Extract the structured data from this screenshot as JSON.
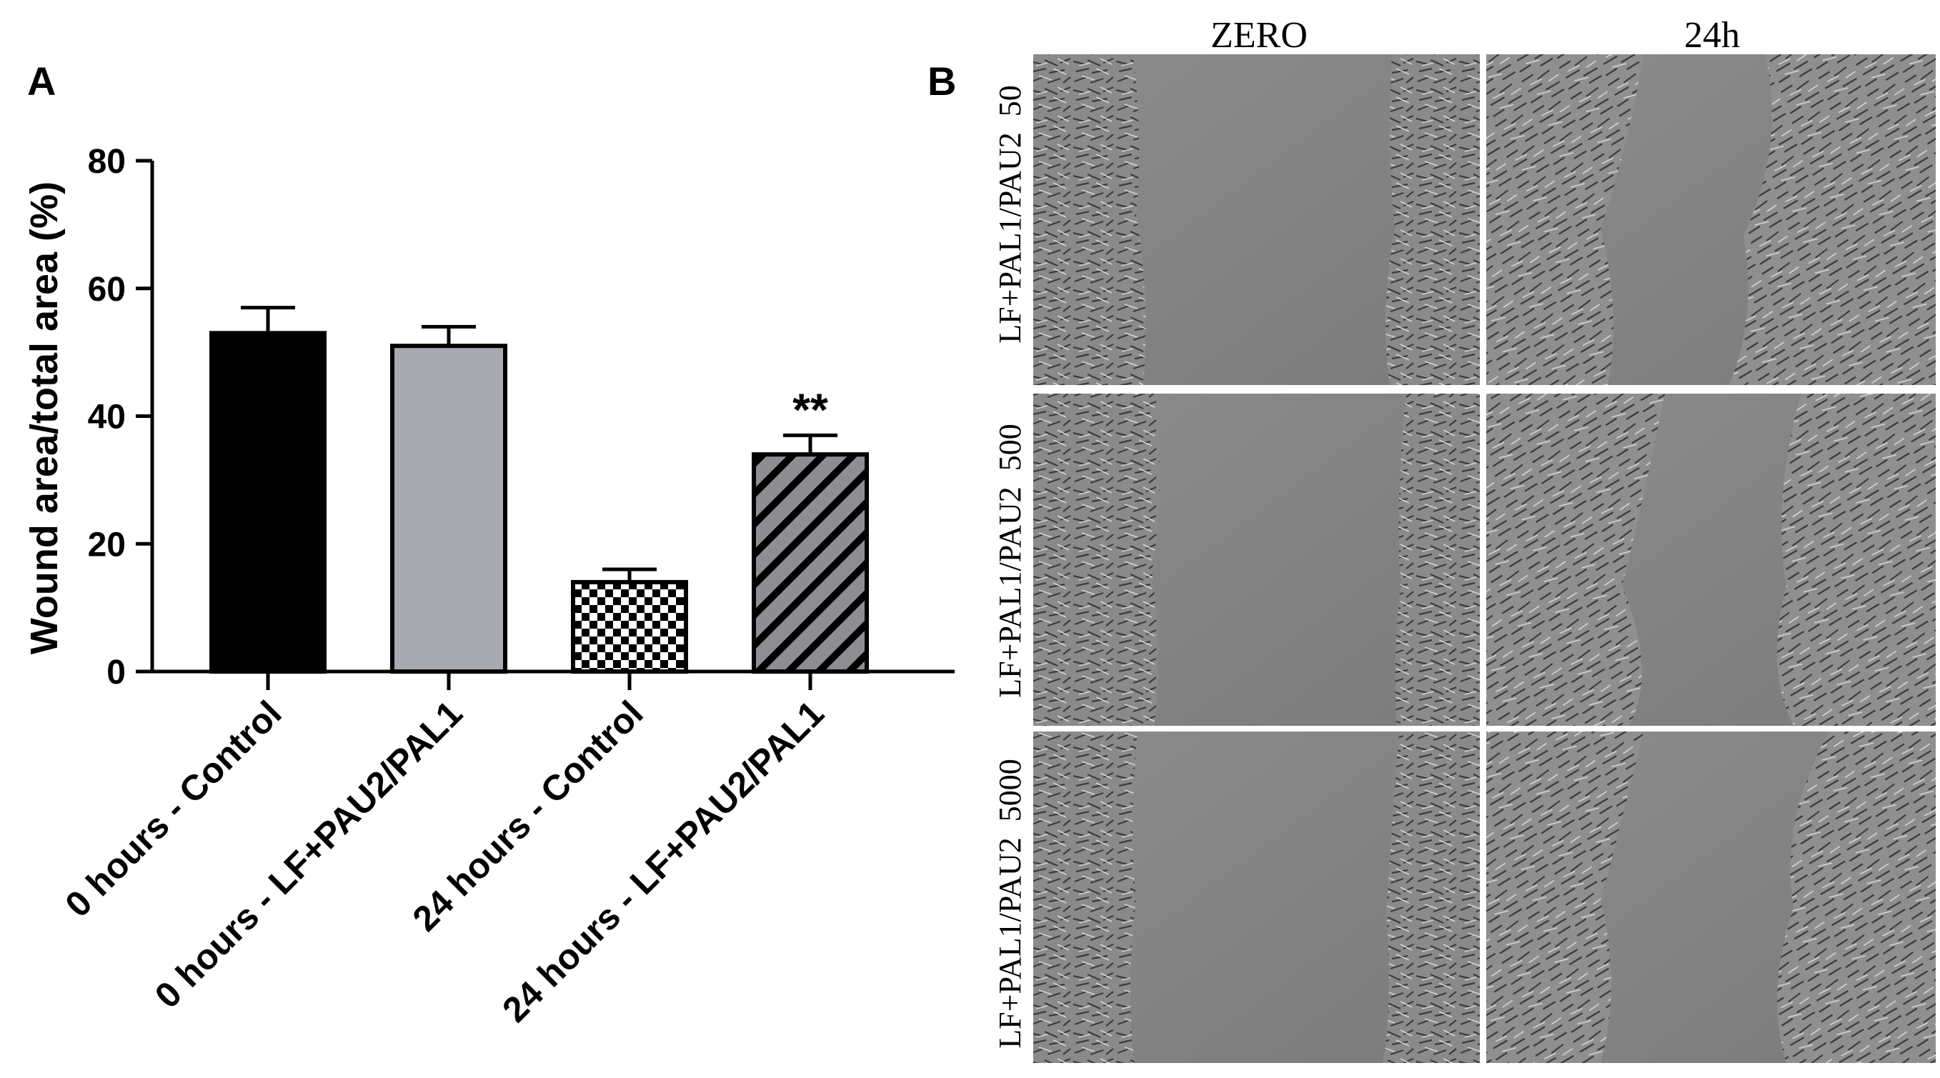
{
  "panel_a": {
    "letter": "A"
  },
  "panel_b": {
    "letter": "B",
    "columns": [
      "ZERO",
      "24h"
    ],
    "rows": [
      "LF+PAL1/PAU2  50",
      "LF+PAL1/PAU2  500",
      "LF+PAL1/PAU2  5000"
    ]
  },
  "chart_data": {
    "type": "bar",
    "title": "",
    "xlabel": "",
    "ylabel": "Wound area/total area (%)",
    "ylim": [
      0,
      80
    ],
    "yticks": [
      0,
      20,
      40,
      60,
      80
    ],
    "grid": false,
    "categories": [
      "0 hours - Control",
      "0 hours - LF+PAU2/PAL1",
      "24 hours - Control",
      "24 hours - LF+PAU2/PAL1"
    ],
    "values": [
      53,
      51,
      14,
      34
    ],
    "errors": [
      4,
      3,
      2,
      3
    ],
    "annotations": [
      "",
      "",
      "",
      "**"
    ],
    "fills": [
      "solid-black",
      "solid-gray",
      "checkerboard",
      "diagonal-stripes"
    ],
    "colors": {
      "black": "#000000",
      "gray": "#a9a9b0",
      "stripe_gray": "#8e8e92"
    }
  }
}
